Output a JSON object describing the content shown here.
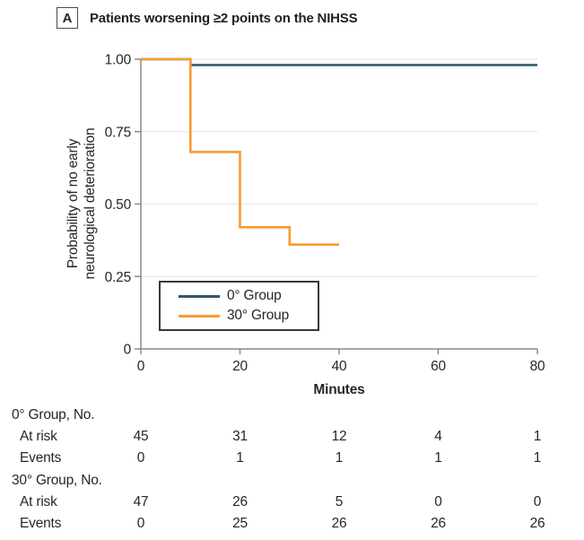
{
  "header": {
    "panel_label": "A",
    "title": "Patients worsening ≥2 points on the NIHSS"
  },
  "chart_data": {
    "type": "line",
    "subtype": "kaplan-meier-step",
    "title": "Patients worsening ≥2 points on the NIHSS",
    "xlabel": "Minutes",
    "ylabel": "Probability of no early\nneurological deterioration",
    "xlim": [
      0,
      80
    ],
    "ylim": [
      0,
      1
    ],
    "x_ticks": [
      {
        "value": 0,
        "label": "0"
      },
      {
        "value": 20,
        "label": "20"
      },
      {
        "value": 40,
        "label": "40"
      },
      {
        "value": 60,
        "label": "60"
      },
      {
        "value": 80,
        "label": "80"
      }
    ],
    "y_ticks": [
      {
        "value": 1,
        "label": "1.00"
      },
      {
        "value": 0.75,
        "label": "0.75"
      },
      {
        "value": 0.5,
        "label": "0.50"
      },
      {
        "value": 0.25,
        "label": "0.25"
      },
      {
        "value": 0,
        "label": "0"
      }
    ],
    "grid": "horizontal-only",
    "legend_position": "inside-lower-left",
    "series": [
      {
        "name": "0° Group",
        "color": "#2F566B",
        "points": [
          [
            0,
            1.0
          ],
          [
            10,
            1.0
          ],
          [
            10,
            0.98
          ],
          [
            80,
            0.98
          ]
        ]
      },
      {
        "name": "30° Group",
        "color": "#F89B31",
        "points": [
          [
            0,
            1.0
          ],
          [
            10,
            1.0
          ],
          [
            10,
            0.68
          ],
          [
            20,
            0.68
          ],
          [
            20,
            0.42
          ],
          [
            30,
            0.42
          ],
          [
            30,
            0.36
          ],
          [
            40,
            0.36
          ]
        ]
      }
    ]
  },
  "risk_table": {
    "time_points": [
      0,
      20,
      40,
      60,
      80
    ],
    "groups": [
      {
        "header": "0° Group, No.",
        "rows": [
          {
            "label": "At risk",
            "values": [
              "45",
              "31",
              "12",
              "4",
              "1"
            ]
          },
          {
            "label": "Events",
            "values": [
              "0",
              "1",
              "1",
              "1",
              "1"
            ]
          }
        ]
      },
      {
        "header": "30° Group, No.",
        "rows": [
          {
            "label": "At risk",
            "values": [
              "47",
              "26",
              "5",
              "0",
              "0"
            ]
          },
          {
            "label": "Events",
            "values": [
              "0",
              "25",
              "26",
              "26",
              "26"
            ]
          }
        ]
      }
    ]
  },
  "colors": {
    "grid": "#E8E8E8",
    "axis": "#8A8A8A",
    "text": "#262626"
  }
}
